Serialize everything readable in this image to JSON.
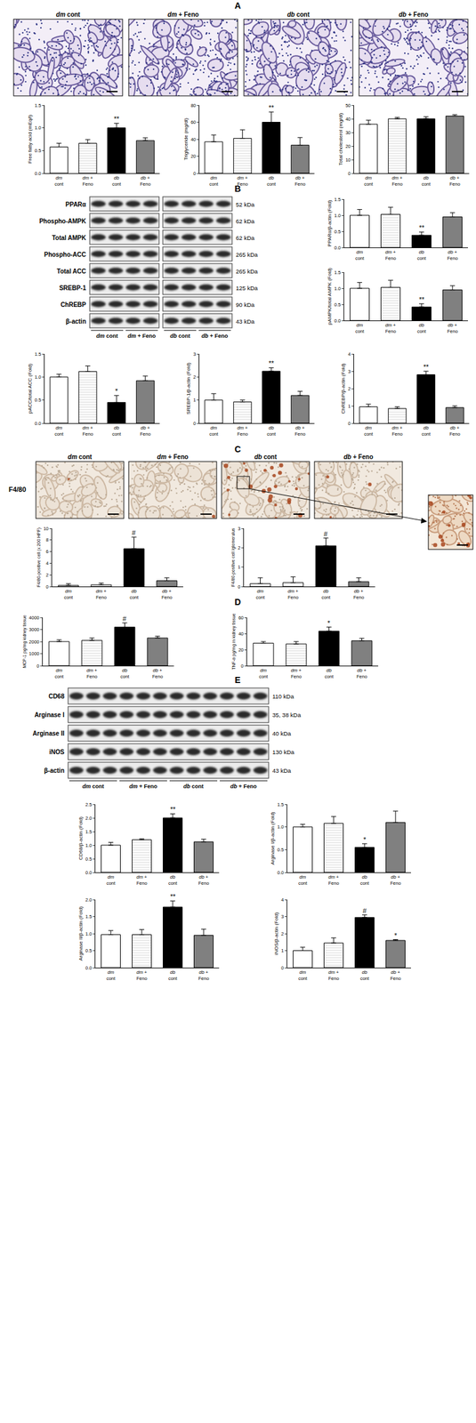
{
  "panel_labels": [
    "A",
    "B",
    "C",
    "D",
    "E"
  ],
  "histology_A": {
    "labels": [
      "dm cont",
      "dm + Feno",
      "db cont",
      "db + Feno"
    ]
  },
  "histology_C": {
    "stain": "F4/80",
    "labels": [
      "dm cont",
      "dm + Feno",
      "db cont",
      "db + Feno"
    ]
  },
  "blots": [
    {
      "groups": [
        "dm cont",
        "dm + Feno",
        "db cont",
        "db + Feno"
      ],
      "lanes_per_group": 2,
      "rows": [
        {
          "label": "PPARα",
          "size": "52 kDa"
        },
        {
          "label": "Phospho-AMPK",
          "size": "62 kDa"
        },
        {
          "label": "Total AMPK",
          "size": "62 kDa"
        },
        {
          "label": "Phospho-ACC",
          "size": "265 kDa"
        },
        {
          "label": "Total ACC",
          "size": "265 kDa"
        },
        {
          "label": "SREBP-1",
          "size": "125 kDa"
        },
        {
          "label": "ChREBP",
          "size": "90 kDa"
        },
        {
          "label": "β-actin",
          "size": "43 kDa"
        }
      ]
    },
    {
      "groups": [
        "dm cont",
        "dm + Feno",
        "db cont",
        "db + Feno"
      ],
      "lanes_per_group": 3,
      "rows": [
        {
          "label": "CD68",
          "size": "110 kDa"
        },
        {
          "label": "Arginase I",
          "size": "35, 38 kDa"
        },
        {
          "label": "Arginase II",
          "size": "40 kDa"
        },
        {
          "label": "iNOS",
          "size": "130 kDa"
        },
        {
          "label": "β-actin",
          "size": "43 kDa"
        }
      ]
    }
  ],
  "chart_data": [
    {
      "type": "bar",
      "ylabel": "Free fatty acid (mEq/l)",
      "categories": [
        "dm cont",
        "dm + Feno",
        "db cont",
        "db + Feno"
      ],
      "values": [
        0.58,
        0.66,
        1.0,
        0.72
      ],
      "errors": [
        0.08,
        0.08,
        0.1,
        0.06
      ],
      "colors": [
        "#ffffff",
        "#dcdcdc",
        "#000000",
        "#808080"
      ],
      "ylim": [
        0,
        1.5
      ],
      "yticks": [
        {
          "value": 0,
          "label": "0.0"
        },
        0.5,
        {
          "value": 1,
          "label": "1.0"
        },
        1.5
      ],
      "grid": false,
      "annotations": [
        {
          "category": "db cont",
          "text": "**"
        }
      ]
    },
    {
      "type": "bar",
      "ylabel": "Triglyceride (mg/dl)",
      "categories": [
        "dm cont",
        "dm + Feno",
        "db cont",
        "db + Feno"
      ],
      "values": [
        37,
        41,
        60,
        33
      ],
      "errors": [
        8,
        10,
        12,
        9
      ],
      "colors": [
        "#ffffff",
        "#dcdcdc",
        "#000000",
        "#808080"
      ],
      "ylim": [
        0,
        80
      ],
      "yticks": [
        0,
        20,
        40,
        60,
        80
      ],
      "grid": false,
      "annotations": [
        {
          "category": "db cont",
          "text": "**"
        }
      ]
    },
    {
      "type": "bar",
      "ylabel": "Total cholesterol (mg/dl)",
      "categories": [
        "dm cont",
        "dm + Feno",
        "db cont",
        "db + Feno"
      ],
      "values": [
        36,
        40,
        40,
        42
      ],
      "errors": [
        3,
        1,
        1.5,
        1
      ],
      "colors": [
        "#ffffff",
        "#dcdcdc",
        "#000000",
        "#808080"
      ],
      "ylim": [
        0,
        50
      ],
      "yticks": [
        0,
        10,
        20,
        30,
        40,
        50
      ],
      "grid": false,
      "annotations": []
    },
    {
      "type": "bar",
      "ylabel": "PPARα/β-actin (Fold)",
      "categories": [
        "dm cont",
        "dm + Feno",
        "db cont",
        "db + Feno"
      ],
      "values": [
        1.0,
        1.03,
        0.38,
        0.95
      ],
      "errors": [
        0.18,
        0.22,
        0.1,
        0.13
      ],
      "colors": [
        "#ffffff",
        "#dcdcdc",
        "#000000",
        "#808080"
      ],
      "ylim": [
        0,
        1.5
      ],
      "yticks": [
        {
          "value": 0,
          "label": "0.0"
        },
        0.5,
        {
          "value": 1,
          "label": "1.0"
        },
        1.5
      ],
      "grid": false,
      "annotations": [
        {
          "category": "db cont",
          "text": "**"
        }
      ]
    },
    {
      "type": "bar",
      "ylabel": "pAMPK/total AMPK (Fold)",
      "categories": [
        "dm cont",
        "dm + Feno",
        "db cont",
        "db + Feno"
      ],
      "values": [
        1.0,
        1.03,
        0.42,
        0.95
      ],
      "errors": [
        0.18,
        0.22,
        0.1,
        0.13
      ],
      "colors": [
        "#ffffff",
        "#dcdcdc",
        "#000000",
        "#808080"
      ],
      "ylim": [
        0,
        1.5
      ],
      "yticks": [
        {
          "value": 0,
          "label": "0.0"
        },
        0.5,
        {
          "value": 1,
          "label": "1.0"
        },
        1.5
      ],
      "grid": false,
      "annotations": [
        {
          "category": "db cont",
          "text": "**"
        }
      ]
    },
    {
      "type": "bar",
      "ylabel": "pACC/total ACC (Fold)",
      "categories": [
        "dm cont",
        "dm + Feno",
        "db cont",
        "db + Feno"
      ],
      "values": [
        1.0,
        1.12,
        0.45,
        0.92
      ],
      "errors": [
        0.06,
        0.12,
        0.15,
        0.1
      ],
      "colors": [
        "#ffffff",
        "#dcdcdc",
        "#000000",
        "#808080"
      ],
      "ylim": [
        0,
        1.5
      ],
      "yticks": [
        {
          "value": 0,
          "label": "0.0"
        },
        0.5,
        {
          "value": 1,
          "label": "1.0"
        },
        1.5
      ],
      "grid": false,
      "annotations": [
        {
          "category": "db cont",
          "text": "*"
        }
      ]
    },
    {
      "type": "bar",
      "ylabel": "SREBP-1/β-actin (Fold)",
      "categories": [
        "dm cont",
        "dm + Feno",
        "db cont",
        "db + Feno"
      ],
      "values": [
        1.0,
        0.92,
        2.25,
        1.2
      ],
      "errors": [
        0.28,
        0.08,
        0.15,
        0.18
      ],
      "colors": [
        "#ffffff",
        "#dcdcdc",
        "#000000",
        "#808080"
      ],
      "ylim": [
        0,
        3
      ],
      "yticks": [
        0,
        1,
        2,
        3
      ],
      "grid": false,
      "annotations": [
        {
          "category": "db cont",
          "text": "**"
        }
      ]
    },
    {
      "type": "bar",
      "ylabel": "ChREBP/β-actin (Fold)",
      "categories": [
        "dm cont",
        "dm + Feno",
        "db cont",
        "db + Feno"
      ],
      "values": [
        0.95,
        0.85,
        2.8,
        0.9
      ],
      "errors": [
        0.15,
        0.1,
        0.2,
        0.1
      ],
      "colors": [
        "#ffffff",
        "#dcdcdc",
        "#000000",
        "#808080"
      ],
      "ylim": [
        0,
        4
      ],
      "yticks": [
        0,
        1,
        2,
        3,
        4
      ],
      "grid": false,
      "annotations": [
        {
          "category": "db cont",
          "text": "**"
        }
      ]
    },
    {
      "type": "bar",
      "ylabel": "F4/80-positive cell (x 200 HPF)",
      "categories": [
        "dm cont",
        "dm + Feno",
        "db cont",
        "db + Feno"
      ],
      "values": [
        0.2,
        0.3,
        6.5,
        1.0
      ],
      "errors": [
        0.3,
        0.3,
        2.0,
        0.5
      ],
      "colors": [
        "#ffffff",
        "#dcdcdc",
        "#000000",
        "#808080"
      ],
      "ylim": [
        0,
        10
      ],
      "yticks": [
        0,
        2,
        4,
        6,
        8,
        10
      ],
      "grid": false,
      "annotations": [
        {
          "category": "db cont",
          "text": "#"
        }
      ]
    },
    {
      "type": "bar",
      "ylabel": "F4/80-positive cell /glomerulus",
      "categories": [
        "dm cont",
        "dm + Feno",
        "db cont",
        "db + Feno"
      ],
      "values": [
        0.15,
        0.2,
        2.1,
        0.25
      ],
      "errors": [
        0.3,
        0.3,
        0.4,
        0.2
      ],
      "colors": [
        "#ffffff",
        "#dcdcdc",
        "#000000",
        "#808080"
      ],
      "ylim": [
        0,
        3
      ],
      "yticks": [
        0,
        1,
        2,
        3
      ],
      "grid": false,
      "annotations": [
        {
          "category": "db cont",
          "text": "#"
        }
      ]
    },
    {
      "type": "bar",
      "ylabel": "MCP-1 pg/mg kidney tissue",
      "categories": [
        "dm cont",
        "dm + Feno",
        "db cont",
        "db + Feno"
      ],
      "values": [
        2000,
        2100,
        3200,
        2300
      ],
      "errors": [
        150,
        200,
        350,
        150
      ],
      "colors": [
        "#ffffff",
        "#dcdcdc",
        "#000000",
        "#808080"
      ],
      "ylim": [
        0,
        4000
      ],
      "yticks": [
        0,
        1000,
        2000,
        3000,
        4000
      ],
      "grid": false,
      "annotations": [
        {
          "category": "db cont",
          "text": "#"
        }
      ]
    },
    {
      "type": "bar",
      "ylabel": "TNF-α pg/mg in kidney tissue",
      "categories": [
        "dm cont",
        "dm + Feno",
        "db cont",
        "db + Feno"
      ],
      "values": [
        28,
        27,
        43,
        31
      ],
      "errors": [
        2,
        3,
        5,
        3
      ],
      "colors": [
        "#ffffff",
        "#dcdcdc",
        "#000000",
        "#808080"
      ],
      "ylim": [
        0,
        60
      ],
      "yticks": [
        0,
        20,
        40,
        60
      ],
      "grid": false,
      "annotations": [
        {
          "category": "db cont",
          "text": "*"
        }
      ]
    },
    {
      "type": "bar",
      "ylabel": "CD68/β-actin (Fold)",
      "categories": [
        "dm cont",
        "dm + Feno",
        "db cont",
        "db + Feno"
      ],
      "values": [
        1.0,
        1.2,
        2.0,
        1.12
      ],
      "errors": [
        0.1,
        0.03,
        0.15,
        0.1
      ],
      "colors": [
        "#ffffff",
        "#dcdcdc",
        "#000000",
        "#808080"
      ],
      "ylim": [
        0,
        2.5
      ],
      "yticks": [
        {
          "value": 0,
          "label": "0.0"
        },
        0.5,
        {
          "value": 1,
          "label": "1.0"
        },
        1.5,
        {
          "value": 2,
          "label": "2.0"
        },
        2.5
      ],
      "grid": false,
      "annotations": [
        {
          "category": "db cont",
          "text": "**"
        }
      ]
    },
    {
      "type": "bar",
      "ylabel": "Arginase I/β-actin (Fold)",
      "categories": [
        "dm cont",
        "dm + Feno",
        "db cont",
        "db + Feno"
      ],
      "values": [
        1.0,
        1.08,
        0.55,
        1.1
      ],
      "errors": [
        0.06,
        0.15,
        0.08,
        0.25
      ],
      "colors": [
        "#ffffff",
        "#dcdcdc",
        "#000000",
        "#808080"
      ],
      "ylim": [
        0,
        1.5
      ],
      "yticks": [
        {
          "value": 0,
          "label": "0.0"
        },
        0.5,
        {
          "value": 1,
          "label": "1.0"
        },
        1.5
      ],
      "grid": false,
      "annotations": [
        {
          "category": "db cont",
          "text": "*"
        }
      ]
    },
    {
      "type": "bar",
      "ylabel": "Arginase II/β-actin (Fold)",
      "categories": [
        "dm cont",
        "dm + Feno",
        "db cont",
        "db + Feno"
      ],
      "values": [
        0.97,
        0.97,
        1.78,
        0.95
      ],
      "errors": [
        0.12,
        0.15,
        0.18,
        0.18
      ],
      "colors": [
        "#ffffff",
        "#dcdcdc",
        "#000000",
        "#808080"
      ],
      "ylim": [
        0,
        2
      ],
      "yticks": [
        {
          "value": 0,
          "label": "0.0"
        },
        0.5,
        {
          "value": 1,
          "label": "1.0"
        },
        1.5,
        {
          "value": 2,
          "label": "2.0"
        }
      ],
      "grid": false,
      "annotations": [
        {
          "category": "db cont",
          "text": "**"
        }
      ]
    },
    {
      "type": "bar",
      "ylabel": "iNOS/β-actin (Fold)",
      "categories": [
        "dm cont",
        "dm + Feno",
        "db cont",
        "db + Feno"
      ],
      "values": [
        1.0,
        1.45,
        2.95,
        1.6
      ],
      "errors": [
        0.2,
        0.3,
        0.15,
        0.05
      ],
      "colors": [
        "#ffffff",
        "#dcdcdc",
        "#000000",
        "#808080"
      ],
      "ylim": [
        0,
        4
      ],
      "yticks": [
        0,
        1,
        2,
        3,
        4
      ],
      "grid": false,
      "annotations": [
        {
          "category": "db cont",
          "text": "#"
        },
        {
          "category": "db + Feno",
          "text": "*"
        }
      ]
    }
  ]
}
